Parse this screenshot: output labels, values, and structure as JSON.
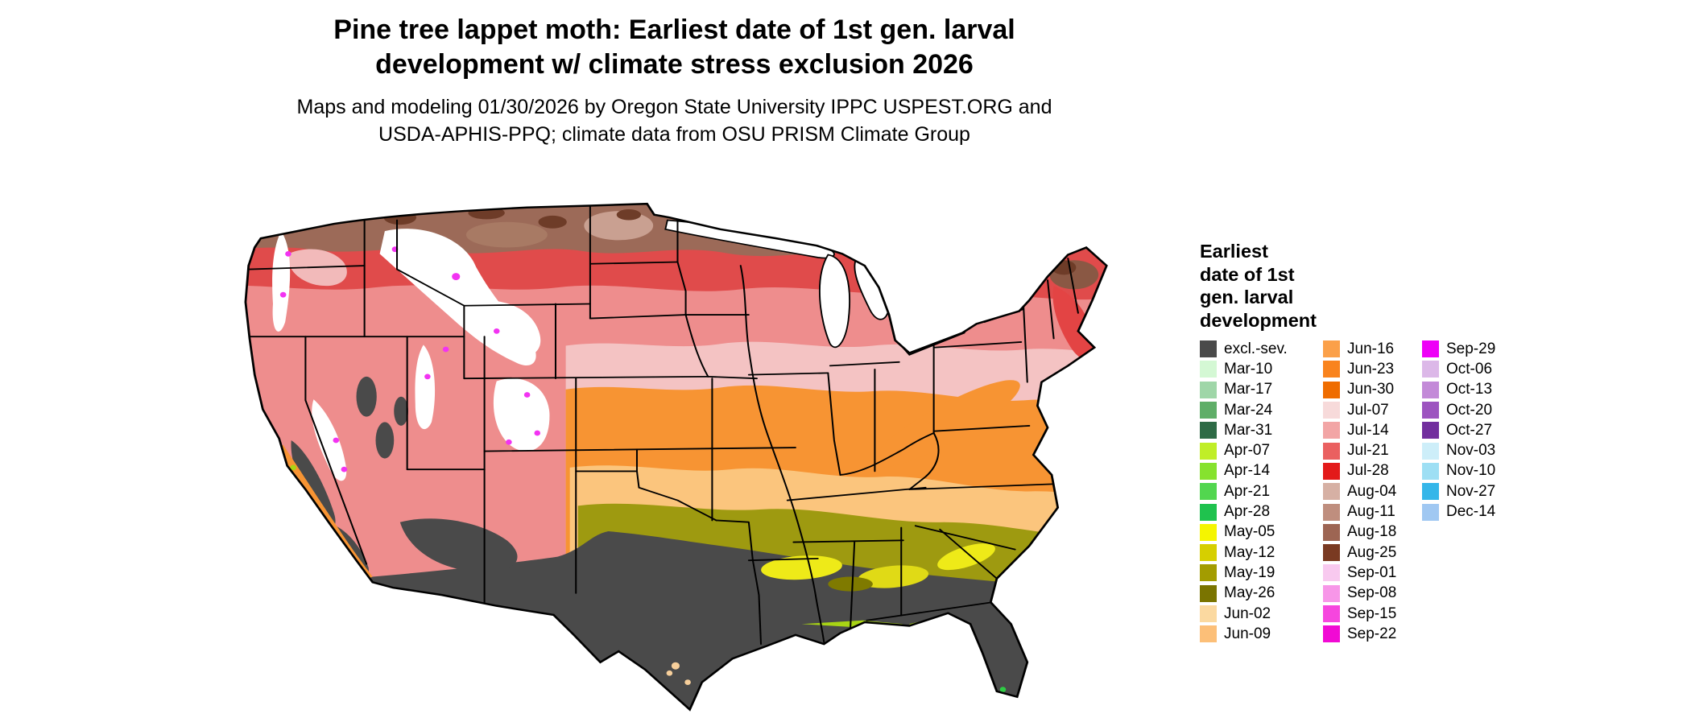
{
  "title": {
    "line1": "Pine tree lappet moth: Earliest date of 1st gen. larval",
    "line2": "development w/ climate stress exclusion 2026"
  },
  "subtitle": {
    "line1": "Maps and modeling 01/30/2026 by Oregon State University IPPC USPEST.ORG and",
    "line2": "USDA-APHIS-PPQ; climate data from OSU PRISM Climate Group"
  },
  "map": {
    "type": "choropleth raster map",
    "region": "Contiguous United States",
    "excluded_color": "#4a4a4a",
    "background_color": "#ffffff"
  },
  "legend": {
    "title_lines": [
      "Earliest",
      "date of 1st",
      "gen. larval",
      "development"
    ],
    "columns": [
      {
        "entries": [
          {
            "label": "excl.-sev.",
            "color": "#4a4a4a"
          },
          {
            "label": "Mar-10",
            "color": "#d4f8d4"
          },
          {
            "label": "Mar-17",
            "color": "#9fd6a8"
          },
          {
            "label": "Mar-24",
            "color": "#5fae68"
          },
          {
            "label": "Mar-31",
            "color": "#2e6b46"
          },
          {
            "label": "Apr-07",
            "color": "#c0ee27"
          },
          {
            "label": "Apr-14",
            "color": "#86e22e"
          },
          {
            "label": "Apr-21",
            "color": "#52d64f"
          },
          {
            "label": "Apr-28",
            "color": "#1fc24e"
          },
          {
            "label": "May-05",
            "color": "#f5f500"
          },
          {
            "label": "May-12",
            "color": "#d6cf00"
          },
          {
            "label": "May-19",
            "color": "#a39c00"
          },
          {
            "label": "May-26",
            "color": "#7a7400"
          },
          {
            "label": "Jun-02",
            "color": "#fbd9a0"
          },
          {
            "label": "Jun-09",
            "color": "#fcbf78"
          }
        ]
      },
      {
        "entries": [
          {
            "label": "Jun-16",
            "color": "#fba049"
          },
          {
            "label": "Jun-23",
            "color": "#f9831d"
          },
          {
            "label": "Jun-30",
            "color": "#ef6c00"
          },
          {
            "label": "Jul-07",
            "color": "#f7dada"
          },
          {
            "label": "Jul-14",
            "color": "#f2a5a5"
          },
          {
            "label": "Jul-21",
            "color": "#ea6060"
          },
          {
            "label": "Jul-28",
            "color": "#e31a1a"
          },
          {
            "label": "Aug-04",
            "color": "#d6b0a4"
          },
          {
            "label": "Aug-11",
            "color": "#bf8e7e"
          },
          {
            "label": "Aug-18",
            "color": "#9d6553"
          },
          {
            "label": "Aug-25",
            "color": "#7a3a22"
          },
          {
            "label": "Sep-01",
            "color": "#f8c9ef"
          },
          {
            "label": "Sep-08",
            "color": "#f796e8"
          },
          {
            "label": "Sep-15",
            "color": "#f646de"
          },
          {
            "label": "Sep-22",
            "color": "#f10ad4"
          }
        ]
      },
      {
        "entries": [
          {
            "label": "Sep-29",
            "color": "#ee00f7"
          },
          {
            "label": "Oct-06",
            "color": "#dcb8e8"
          },
          {
            "label": "Oct-13",
            "color": "#c38ad8"
          },
          {
            "label": "Oct-20",
            "color": "#9d54c0"
          },
          {
            "label": "Oct-27",
            "color": "#722f9e"
          },
          {
            "label": "Nov-03",
            "color": "#cdeef9"
          },
          {
            "label": "Nov-10",
            "color": "#9edff4"
          },
          {
            "label": "Nov-27",
            "color": "#35b6e9"
          },
          {
            "label": "Dec-14",
            "color": "#a0c8f2"
          }
        ]
      }
    ]
  }
}
